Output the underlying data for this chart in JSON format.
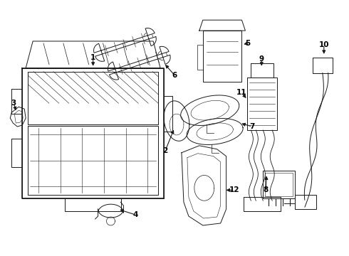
{
  "background_color": "#ffffff",
  "line_color": "#1a1a1a",
  "text_color": "#000000",
  "fig_width": 4.9,
  "fig_height": 3.6,
  "dpi": 100,
  "lw": 0.7
}
